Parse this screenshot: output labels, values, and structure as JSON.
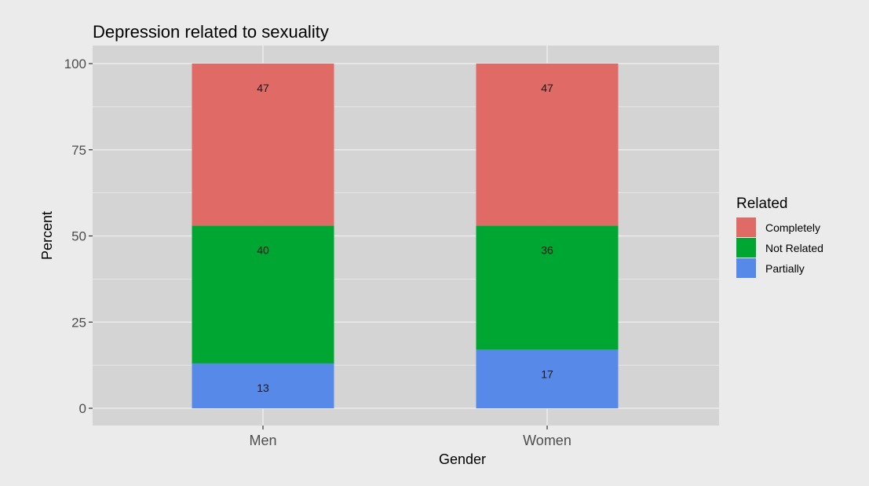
{
  "chart_data": {
    "type": "bar",
    "stacked": true,
    "title": "Depression related to sexuality",
    "xlabel": "Gender",
    "ylabel": "Percent",
    "categories": [
      "Men",
      "Women"
    ],
    "ylim": [
      0,
      100
    ],
    "yticks": [
      0,
      25,
      50,
      75,
      100
    ],
    "grid": true,
    "legend": {
      "title": "Related",
      "placement": "right"
    },
    "series": [
      {
        "name": "Partially",
        "color": "#578ae8",
        "values": [
          13,
          17
        ]
      },
      {
        "name": "Not Related",
        "color": "#00a632",
        "values": [
          40,
          36
        ]
      },
      {
        "name": "Completely",
        "color": "#e06a65",
        "values": [
          47,
          47
        ]
      }
    ],
    "legend_order": [
      "Completely",
      "Not Related",
      "Partially"
    ],
    "colors": {
      "panel": "#d4d4d4",
      "background": "#ebebeb",
      "grid": "#ebebeb"
    }
  }
}
